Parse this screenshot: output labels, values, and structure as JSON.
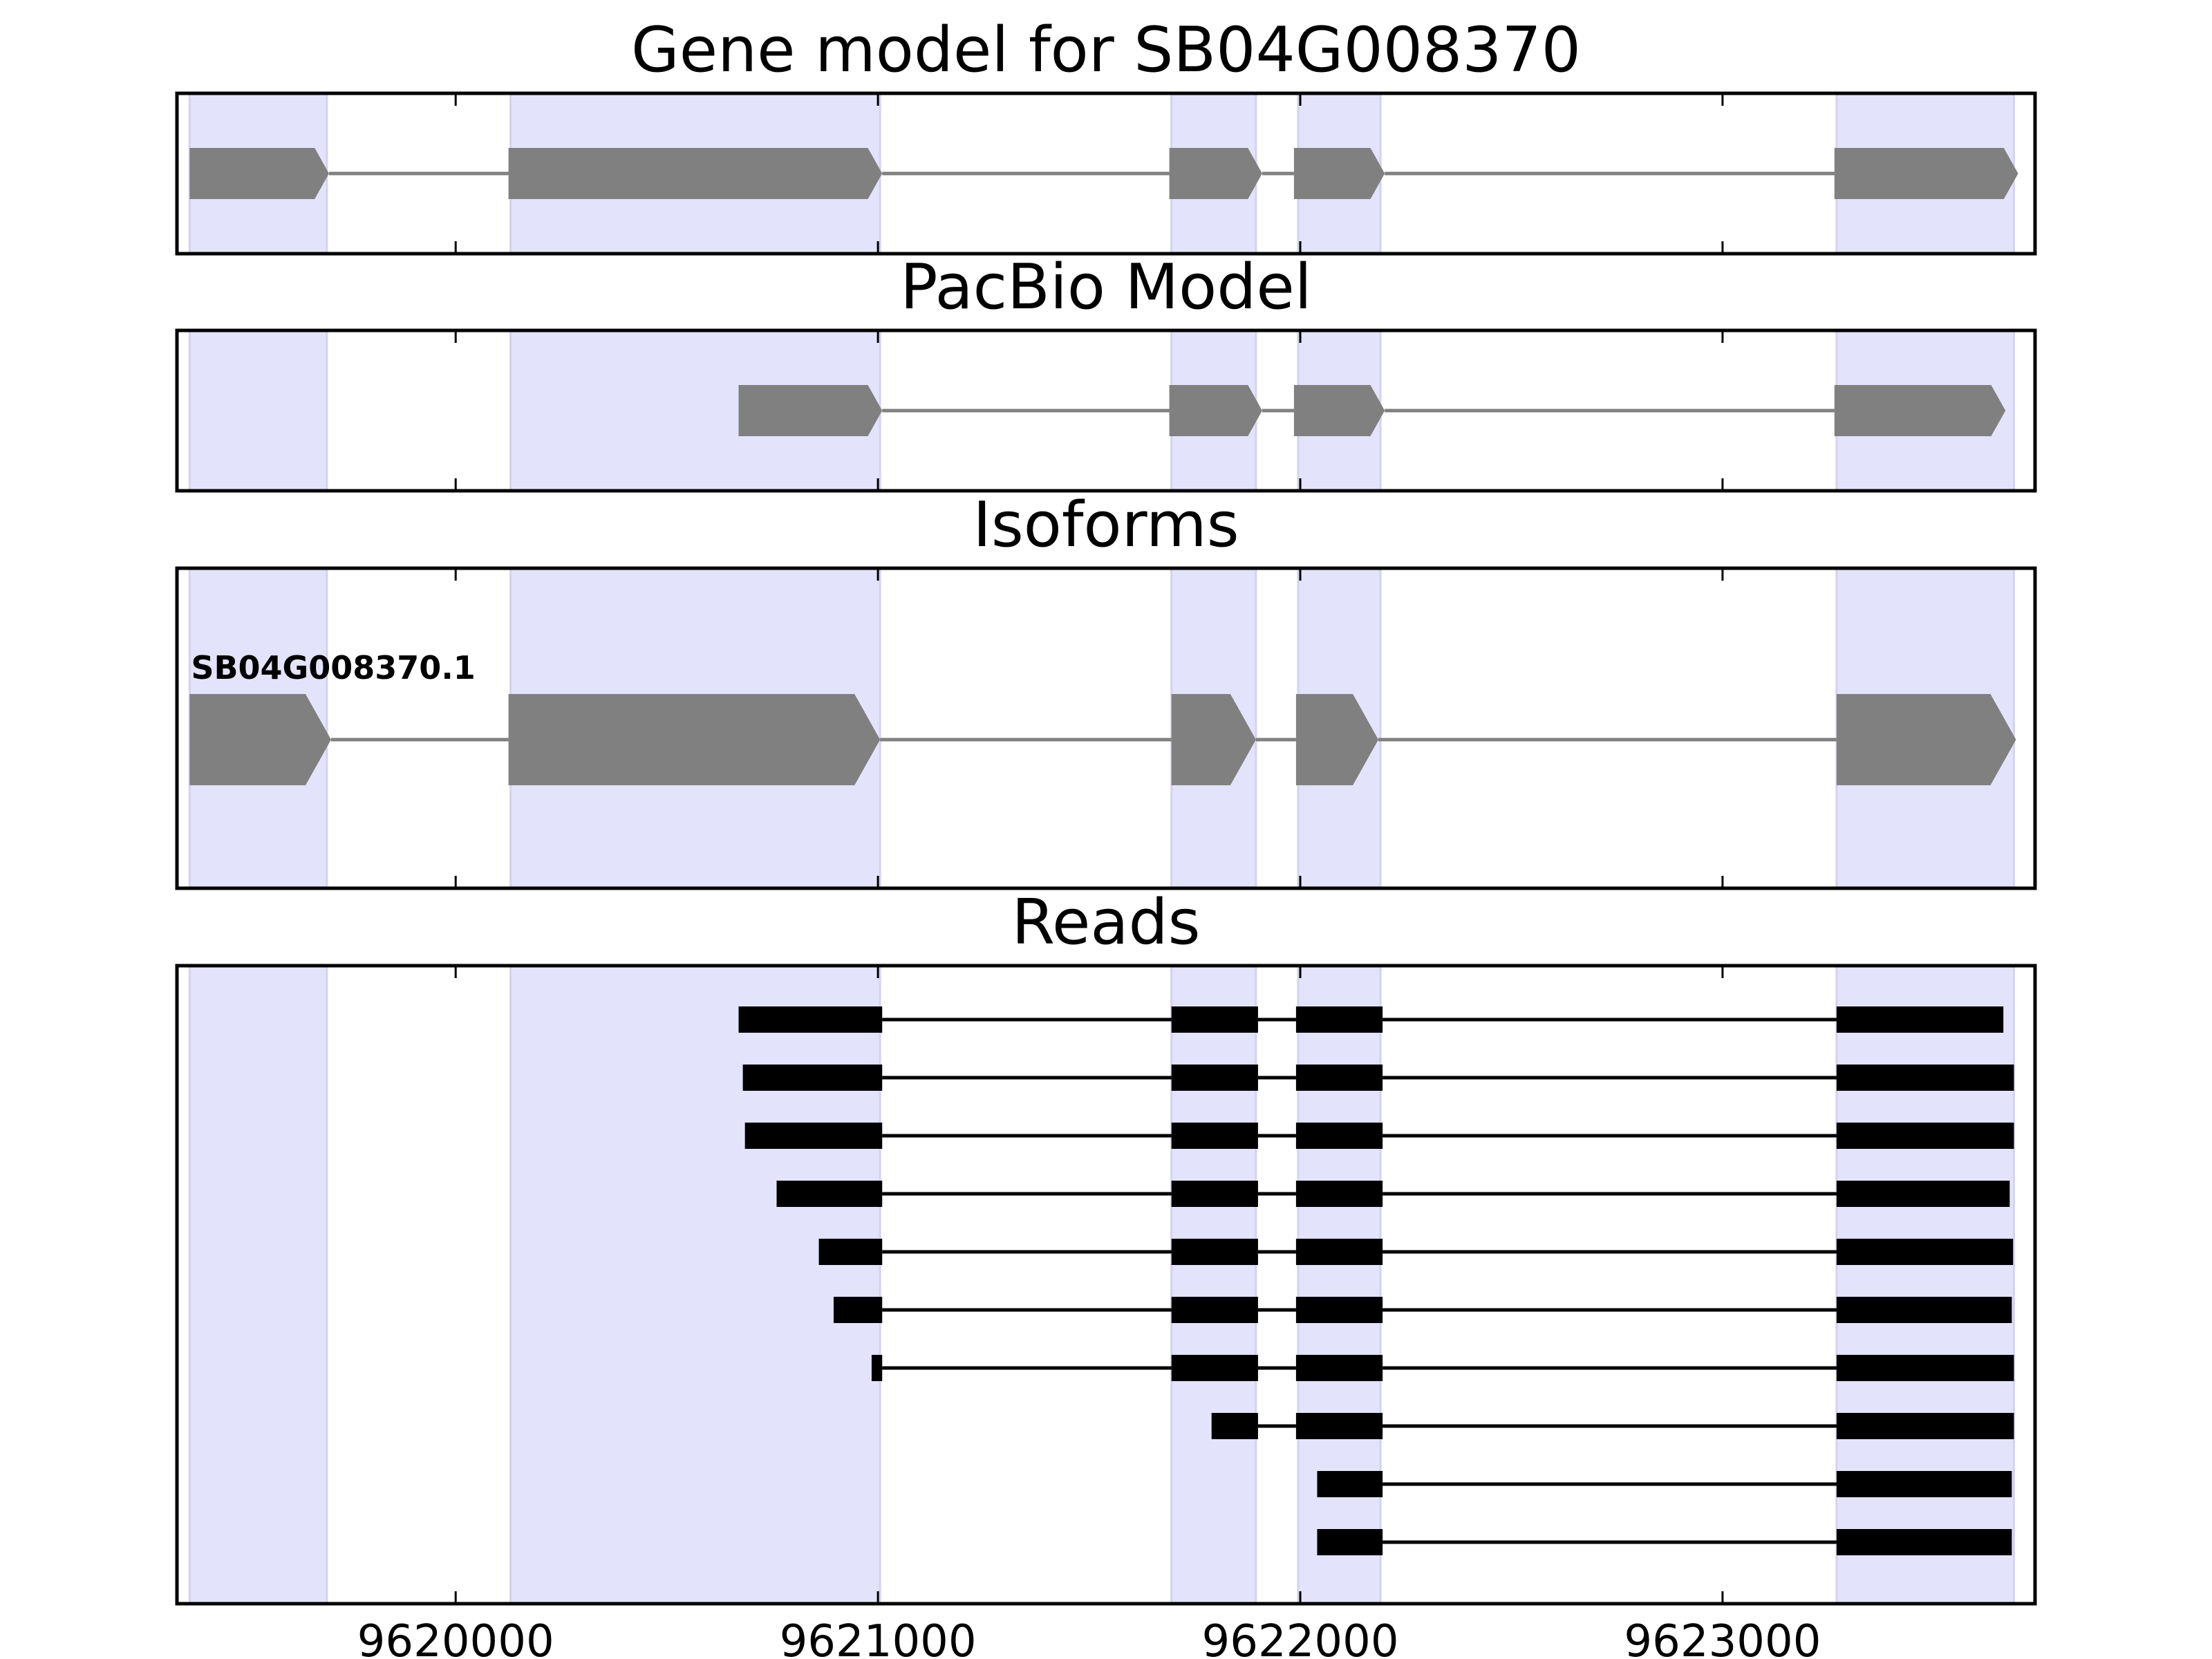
{
  "chart_data": {
    "type": "gene-structure",
    "xlim": [
      9619340,
      9623740
    ],
    "xticks": [
      9620000,
      9621000,
      9622000,
      9623000
    ],
    "xtick_labels": [
      "9620000",
      "9621000",
      "9622000",
      "9623000"
    ],
    "exon_regions": [
      [
        9619370,
        9619695
      ],
      [
        9620130,
        9621005
      ],
      [
        9621695,
        9621895
      ],
      [
        9621995,
        9622190
      ],
      [
        9623270,
        9623690
      ]
    ],
    "panels": [
      {
        "title": "Gene model for SB04G008370",
        "tracks": [
          {
            "exons": [
              [
                9619370,
                9619700
              ],
              [
                9620125,
                9621010
              ],
              [
                9621690,
                9621910
              ],
              [
                9621985,
                9622200
              ],
              [
                9623265,
                9623700
              ]
            ]
          }
        ]
      },
      {
        "title": "PacBio Model",
        "tracks": [
          {
            "exons": [
              [
                9620670,
                9621010
              ],
              [
                9621690,
                9621910
              ],
              [
                9621985,
                9622200
              ],
              [
                9623265,
                9623670
              ]
            ]
          }
        ]
      },
      {
        "title": "Isoforms",
        "tracks": [
          {
            "label": "SB04G008370.1",
            "exons": [
              [
                9619370,
                9619705
              ],
              [
                9620125,
                9621005
              ],
              [
                9621695,
                9621895
              ],
              [
                9621990,
                9622185
              ],
              [
                9623270,
                9623695
              ]
            ]
          }
        ]
      },
      {
        "title": "Reads",
        "tracks": [
          {
            "exons": [
              [
                9620670,
                9621010
              ],
              [
                9621695,
                9621900
              ],
              [
                9621990,
                9622195
              ],
              [
                9623270,
                9623665
              ]
            ]
          },
          {
            "exons": [
              [
                9620680,
                9621010
              ],
              [
                9621695,
                9621900
              ],
              [
                9621990,
                9622195
              ],
              [
                9623270,
                9623690
              ]
            ]
          },
          {
            "exons": [
              [
                9620685,
                9621010
              ],
              [
                9621695,
                9621900
              ],
              [
                9621990,
                9622195
              ],
              [
                9623270,
                9623690
              ]
            ]
          },
          {
            "exons": [
              [
                9620760,
                9621010
              ],
              [
                9621695,
                9621900
              ],
              [
                9621990,
                9622195
              ],
              [
                9623270,
                9623680
              ]
            ]
          },
          {
            "exons": [
              [
                9620860,
                9621010
              ],
              [
                9621695,
                9621900
              ],
              [
                9621990,
                9622195
              ],
              [
                9623270,
                9623688
              ]
            ]
          },
          {
            "exons": [
              [
                9620895,
                9621010
              ],
              [
                9621695,
                9621900
              ],
              [
                9621990,
                9622195
              ],
              [
                9623270,
                9623685
              ]
            ]
          },
          {
            "exons": [
              [
                9620985,
                9621010
              ],
              [
                9621695,
                9621900
              ],
              [
                9621990,
                9622195
              ],
              [
                9623270,
                9623690
              ]
            ]
          },
          {
            "exons": [
              [
                9621790,
                9621900
              ],
              [
                9621990,
                9622195
              ],
              [
                9623270,
                9623690
              ]
            ]
          },
          {
            "exons": [
              [
                9622040,
                9622195
              ],
              [
                9623270,
                9623685
              ]
            ]
          },
          {
            "exons": [
              [
                9622040,
                9622195
              ],
              [
                9623270,
                9623685
              ]
            ]
          }
        ]
      }
    ]
  }
}
